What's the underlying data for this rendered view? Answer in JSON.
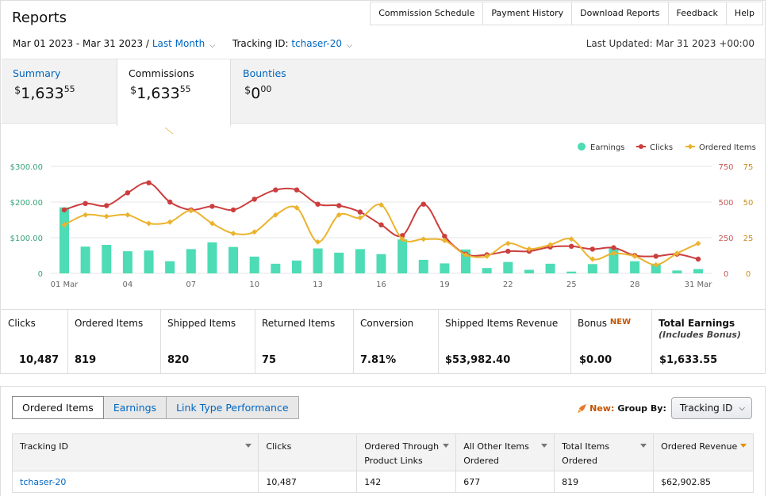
{
  "header": {
    "title": "Reports",
    "nav": [
      "Commission Schedule",
      "Payment History",
      "Download Reports",
      "Feedback",
      "Help"
    ],
    "date_range": "Mar 01 2023 - Mar 31 2023 /",
    "period": "Last Month",
    "tracking_label": "Tracking ID:",
    "tracking_id": "tchaser-20",
    "last_updated": "Last Updated: Mar 31 2023 +00:00"
  },
  "summary_tabs": [
    {
      "label": "Summary",
      "dollars": "1,633",
      "cents": "55",
      "currency": "$"
    },
    {
      "label": "Commissions",
      "dollars": "1,633",
      "cents": "55",
      "currency": "$"
    },
    {
      "label": "Bounties",
      "dollars": "0",
      "cents": "00",
      "currency": "$"
    }
  ],
  "chart_data": {
    "type": "bar",
    "legend_position": "top-right",
    "grid": true,
    "series": [
      {
        "name": "Earnings",
        "type": "bar",
        "axis": "left",
        "color": "#4ddcb5",
        "values": [
          185,
          75,
          80,
          62,
          64,
          34,
          68,
          87,
          74,
          47,
          27,
          36,
          70,
          58,
          68,
          54,
          95,
          38,
          28,
          67,
          15,
          32,
          10,
          27,
          5,
          26,
          71,
          34,
          27,
          8,
          12
        ]
      },
      {
        "name": "Clicks",
        "type": "line",
        "axis": "right1",
        "color": "#cc3e3e",
        "values": [
          445,
          490,
          475,
          565,
          635,
          500,
          445,
          470,
          445,
          520,
          585,
          585,
          485,
          475,
          430,
          340,
          265,
          485,
          260,
          135,
          130,
          155,
          155,
          185,
          190,
          170,
          180,
          125,
          120,
          135,
          100
        ]
      },
      {
        "name": "Ordered Items",
        "type": "line",
        "axis": "right2",
        "color": "#ebb32e",
        "values": [
          34,
          41,
          40,
          41,
          35,
          36,
          44,
          35,
          28,
          29,
          41,
          46,
          22,
          41,
          39,
          48,
          24,
          24,
          23,
          13,
          12,
          21,
          17,
          20,
          24,
          10,
          14,
          12,
          6,
          14,
          21
        ]
      }
    ],
    "x_tick_labels": [
      {
        "day": 1,
        "label": "01 Mar"
      },
      {
        "day": 4,
        "label": "04"
      },
      {
        "day": 7,
        "label": "07"
      },
      {
        "day": 10,
        "label": "10"
      },
      {
        "day": 13,
        "label": "13"
      },
      {
        "day": 16,
        "label": "16"
      },
      {
        "day": 19,
        "label": "19"
      },
      {
        "day": 22,
        "label": "22"
      },
      {
        "day": 25,
        "label": "25"
      },
      {
        "day": 28,
        "label": "28"
      },
      {
        "day": 31,
        "label": "31 Mar"
      }
    ],
    "y_left_ticks": [
      "0",
      "$100.00",
      "$200.00",
      "$300.00"
    ],
    "y_left_range": [
      0,
      300
    ],
    "y_right1_ticks": [
      "0",
      "250",
      "500",
      "750"
    ],
    "y_right1_range": [
      0,
      750
    ],
    "y_right2_ticks": [
      "0",
      "25",
      "50",
      "75"
    ],
    "y_right2_range": [
      0,
      75
    ]
  },
  "metrics": [
    {
      "label": "Clicks",
      "value": "10,487"
    },
    {
      "label": "Ordered Items",
      "value": "819"
    },
    {
      "label": "Shipped Items",
      "value": "820"
    },
    {
      "label": "Returned Items",
      "value": "75"
    },
    {
      "label": "Conversion",
      "value": "7.81%"
    },
    {
      "label": "Shipped Items Revenue",
      "value": "$53,982.40"
    },
    {
      "label": "Bonus",
      "badge": "NEW",
      "value": "$0.00"
    },
    {
      "label": "Total Earnings",
      "sub": "(Includes Bonus)",
      "value": "$1,633.55"
    }
  ],
  "bottom": {
    "tabs": [
      "Ordered Items",
      "Earnings",
      "Link Type Performance"
    ],
    "new_label": "New:",
    "group_by_label": "Group By:",
    "group_by_value": "Tracking ID",
    "columns": [
      "Tracking ID",
      "Clicks",
      "Ordered Through Product Links",
      "All Other Items Ordered",
      "Total Items Ordered",
      "Ordered Revenue"
    ],
    "rows": [
      [
        "tchaser-20",
        "10,487",
        "142",
        "677",
        "819",
        "$62,902.85"
      ]
    ]
  }
}
